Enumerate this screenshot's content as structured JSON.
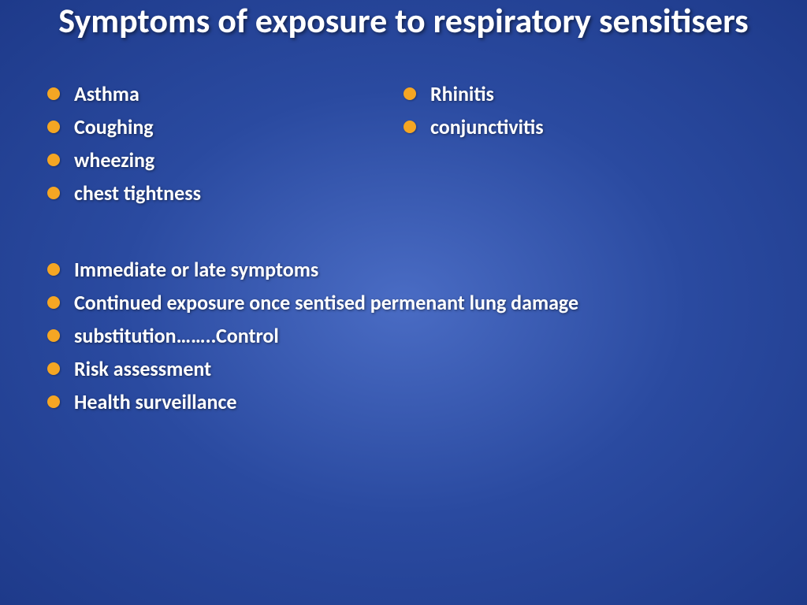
{
  "slide": {
    "title": "Symptoms of exposure  to respiratory sensitisers",
    "title_color": "#ffffff",
    "title_fontsize": 44,
    "background_gradient_center": "#4a6cc4",
    "background_gradient_mid": "#2a4aa0",
    "background_gradient_outer": "#1e3a8a",
    "bullet_color": "#f5a623",
    "text_color": "#ffffff",
    "text_fontsize": 26,
    "left_column": {
      "items": [
        "Asthma",
        "Coughing",
        " wheezing",
        "chest tightness"
      ]
    },
    "right_column": {
      "items": [
        "Rhinitis",
        "conjunctivitis"
      ]
    },
    "bottom_list": {
      "items": [
        "Immediate or late symptoms",
        "Continued exposure once sentised permenant lung damage",
        " substitution……..Control",
        "Risk assessment",
        "Health surveillance"
      ]
    }
  }
}
